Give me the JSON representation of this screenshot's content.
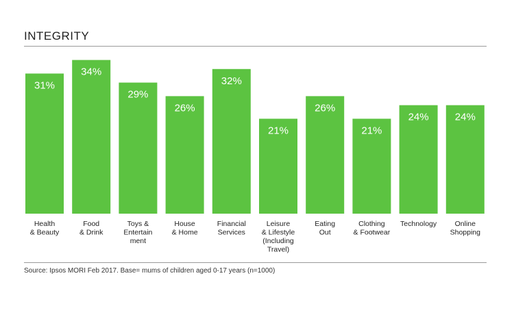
{
  "chart_data": {
    "type": "bar",
    "title": "INTEGRITY",
    "categories": [
      [
        "Health",
        "& Beauty"
      ],
      [
        "Food",
        "& Drink"
      ],
      [
        "Toys &",
        "Entertain",
        "ment"
      ],
      [
        "House",
        "& Home"
      ],
      [
        "Financial",
        "Services"
      ],
      [
        "Leisure",
        "& Lifestyle",
        "(Including",
        "Travel)"
      ],
      [
        "Eating",
        "Out"
      ],
      [
        "Clothing",
        "& Footwear"
      ],
      [
        "Technology"
      ],
      [
        "Online",
        "Shopping"
      ]
    ],
    "values": [
      31,
      34,
      29,
      26,
      32,
      21,
      26,
      21,
      24,
      24
    ],
    "value_labels": [
      "31%",
      "34%",
      "29%",
      "26%",
      "32%",
      "21%",
      "26%",
      "21%",
      "24%",
      "24%"
    ],
    "xlabel": "",
    "ylabel": "",
    "ylim": [
      0,
      35
    ],
    "grid": false,
    "bar_color": "#5cc341",
    "label_color": "#ffffff"
  },
  "footer": {
    "source": "Source: Ipsos MORI Feb 2017. Base= mums of children aged 0-17 years (n=1000)"
  }
}
